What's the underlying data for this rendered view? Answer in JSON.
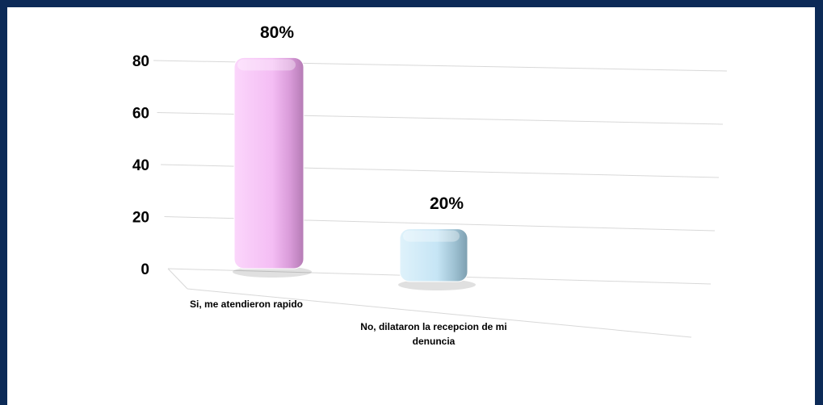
{
  "chart_data": {
    "type": "bar3d",
    "categories": [
      "Si, me atendieron rapido",
      "No, dilataron la recepcion de mi denuncia"
    ],
    "values": [
      80,
      20
    ],
    "value_labels": [
      "80%",
      "20%"
    ],
    "colors": [
      "#f7c4f7",
      "#cbe8f7"
    ],
    "ylim": [
      0,
      80
    ],
    "yticks": [
      0,
      20,
      40,
      60,
      80
    ],
    "grid": true
  }
}
